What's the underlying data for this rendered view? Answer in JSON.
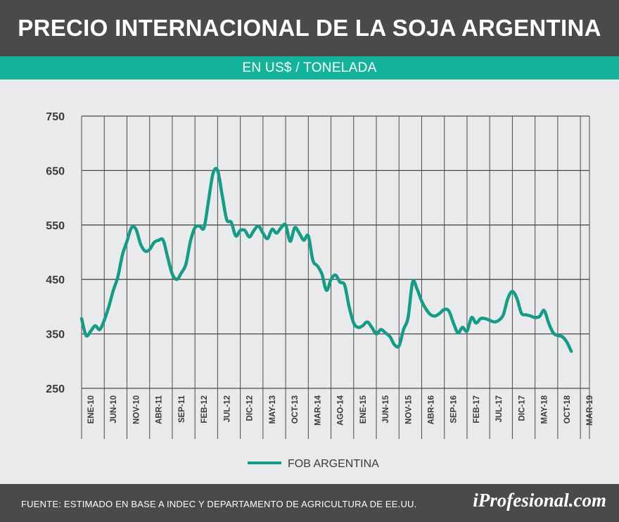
{
  "header": {
    "title": "PRECIO INTERNACIONAL DE LA SOJA ARGENTINA",
    "subtitle": "EN US$ / TONELADA"
  },
  "footer": {
    "source": "FUENTE: ESTIMADO EN BASE A INDEC Y DEPARTAMENTO DE AGRICULTURA DE EE.UU.",
    "brand": "iProfesional.com"
  },
  "colors": {
    "line": "#159b86",
    "header_bg": "#4a4a4a",
    "subtitle_bg": "#13b39c",
    "grid": "#4a4a4a",
    "background": "#e9eaeb"
  },
  "chart_data": {
    "type": "line",
    "title": "PRECIO INTERNACIONAL DE LA SOJA ARGENTINA",
    "subtitle": "EN US$ / TONELADA",
    "xlabel": "",
    "ylabel": "",
    "ylim": [
      250,
      750
    ],
    "yticks": [
      250,
      350,
      450,
      550,
      650,
      750
    ],
    "xticks": [
      "ENE-10",
      "JUN-10",
      "NOV-10",
      "ABR-11",
      "SEP-11",
      "FEB-12",
      "JUL-12",
      "DIC-12",
      "MAY-13",
      "OCT-13",
      "MAR-14",
      "AGO-14",
      "ENE-15",
      "JUN-15",
      "NOV-15",
      "ABR-16",
      "SEP-16",
      "FEB-17",
      "JUL-17",
      "DIC-17",
      "MAY-18",
      "OCT-18",
      "MAR-19"
    ],
    "grid": true,
    "legend_position": "bottom",
    "series": [
      {
        "name": "FOB ARGENTINA",
        "points": [
          [
            "2010-01",
            378
          ],
          [
            "2010-02",
            347
          ],
          [
            "2010-03",
            355
          ],
          [
            "2010-04",
            365
          ],
          [
            "2010-05",
            358
          ],
          [
            "2010-06",
            375
          ],
          [
            "2010-07",
            400
          ],
          [
            "2010-08",
            430
          ],
          [
            "2010-09",
            455
          ],
          [
            "2010-10",
            495
          ],
          [
            "2010-11",
            520
          ],
          [
            "2010-12",
            545
          ],
          [
            "2011-01",
            542
          ],
          [
            "2011-02",
            515
          ],
          [
            "2011-03",
            502
          ],
          [
            "2011-04",
            505
          ],
          [
            "2011-05",
            518
          ],
          [
            "2011-06",
            522
          ],
          [
            "2011-07",
            522
          ],
          [
            "2011-08",
            490
          ],
          [
            "2011-09",
            460
          ],
          [
            "2011-10",
            450
          ],
          [
            "2011-11",
            462
          ],
          [
            "2011-12",
            478
          ],
          [
            "2012-01",
            520
          ],
          [
            "2012-02",
            545
          ],
          [
            "2012-03",
            548
          ],
          [
            "2012-04",
            545
          ],
          [
            "2012-05",
            595
          ],
          [
            "2012-06",
            645
          ],
          [
            "2012-07",
            650
          ],
          [
            "2012-08",
            605
          ],
          [
            "2012-09",
            560
          ],
          [
            "2012-10",
            555
          ],
          [
            "2012-11",
            530
          ],
          [
            "2012-12",
            540
          ],
          [
            "2013-01",
            540
          ],
          [
            "2013-02",
            528
          ],
          [
            "2013-03",
            540
          ],
          [
            "2013-04",
            548
          ],
          [
            "2013-05",
            535
          ],
          [
            "2013-06",
            525
          ],
          [
            "2013-07",
            542
          ],
          [
            "2013-08",
            535
          ],
          [
            "2013-09",
            545
          ],
          [
            "2013-10",
            550
          ],
          [
            "2013-11",
            520
          ],
          [
            "2013-12",
            545
          ],
          [
            "2014-01",
            535
          ],
          [
            "2014-02",
            522
          ],
          [
            "2014-03",
            530
          ],
          [
            "2014-04",
            485
          ],
          [
            "2014-05",
            475
          ],
          [
            "2014-06",
            460
          ],
          [
            "2014-07",
            430
          ],
          [
            "2014-08",
            450
          ],
          [
            "2014-09",
            458
          ],
          [
            "2014-10",
            445
          ],
          [
            "2014-11",
            440
          ],
          [
            "2014-12",
            400
          ],
          [
            "2015-01",
            370
          ],
          [
            "2015-02",
            362
          ],
          [
            "2015-03",
            365
          ],
          [
            "2015-04",
            372
          ],
          [
            "2015-05",
            362
          ],
          [
            "2015-06",
            350
          ],
          [
            "2015-07",
            358
          ],
          [
            "2015-08",
            352
          ],
          [
            "2015-09",
            345
          ],
          [
            "2015-10",
            330
          ],
          [
            "2015-11",
            328
          ],
          [
            "2015-12",
            358
          ],
          [
            "2016-01",
            380
          ],
          [
            "2016-02",
            445
          ],
          [
            "2016-03",
            432
          ],
          [
            "2016-04",
            410
          ],
          [
            "2016-05",
            395
          ],
          [
            "2016-06",
            385
          ],
          [
            "2016-07",
            383
          ],
          [
            "2016-08",
            388
          ],
          [
            "2016-09",
            395
          ],
          [
            "2016-10",
            392
          ],
          [
            "2016-11",
            370
          ],
          [
            "2016-12",
            352
          ],
          [
            "2017-01",
            362
          ],
          [
            "2017-02",
            355
          ],
          [
            "2017-03",
            380
          ],
          [
            "2017-04",
            370
          ],
          [
            "2017-05",
            378
          ],
          [
            "2017-06",
            378
          ],
          [
            "2017-07",
            375
          ],
          [
            "2017-08",
            372
          ],
          [
            "2017-09",
            375
          ],
          [
            "2017-10",
            385
          ],
          [
            "2017-11",
            415
          ],
          [
            "2017-12",
            428
          ],
          [
            "2018-01",
            415
          ],
          [
            "2018-02",
            388
          ],
          [
            "2018-03",
            385
          ],
          [
            "2018-04",
            383
          ],
          [
            "2018-05",
            380
          ],
          [
            "2018-06",
            382
          ],
          [
            "2018-07",
            393
          ],
          [
            "2018-08",
            370
          ],
          [
            "2018-09",
            352
          ],
          [
            "2018-10",
            347
          ],
          [
            "2018-11",
            345
          ],
          [
            "2018-12",
            335
          ],
          [
            "2019-01",
            318
          ]
        ]
      }
    ]
  }
}
